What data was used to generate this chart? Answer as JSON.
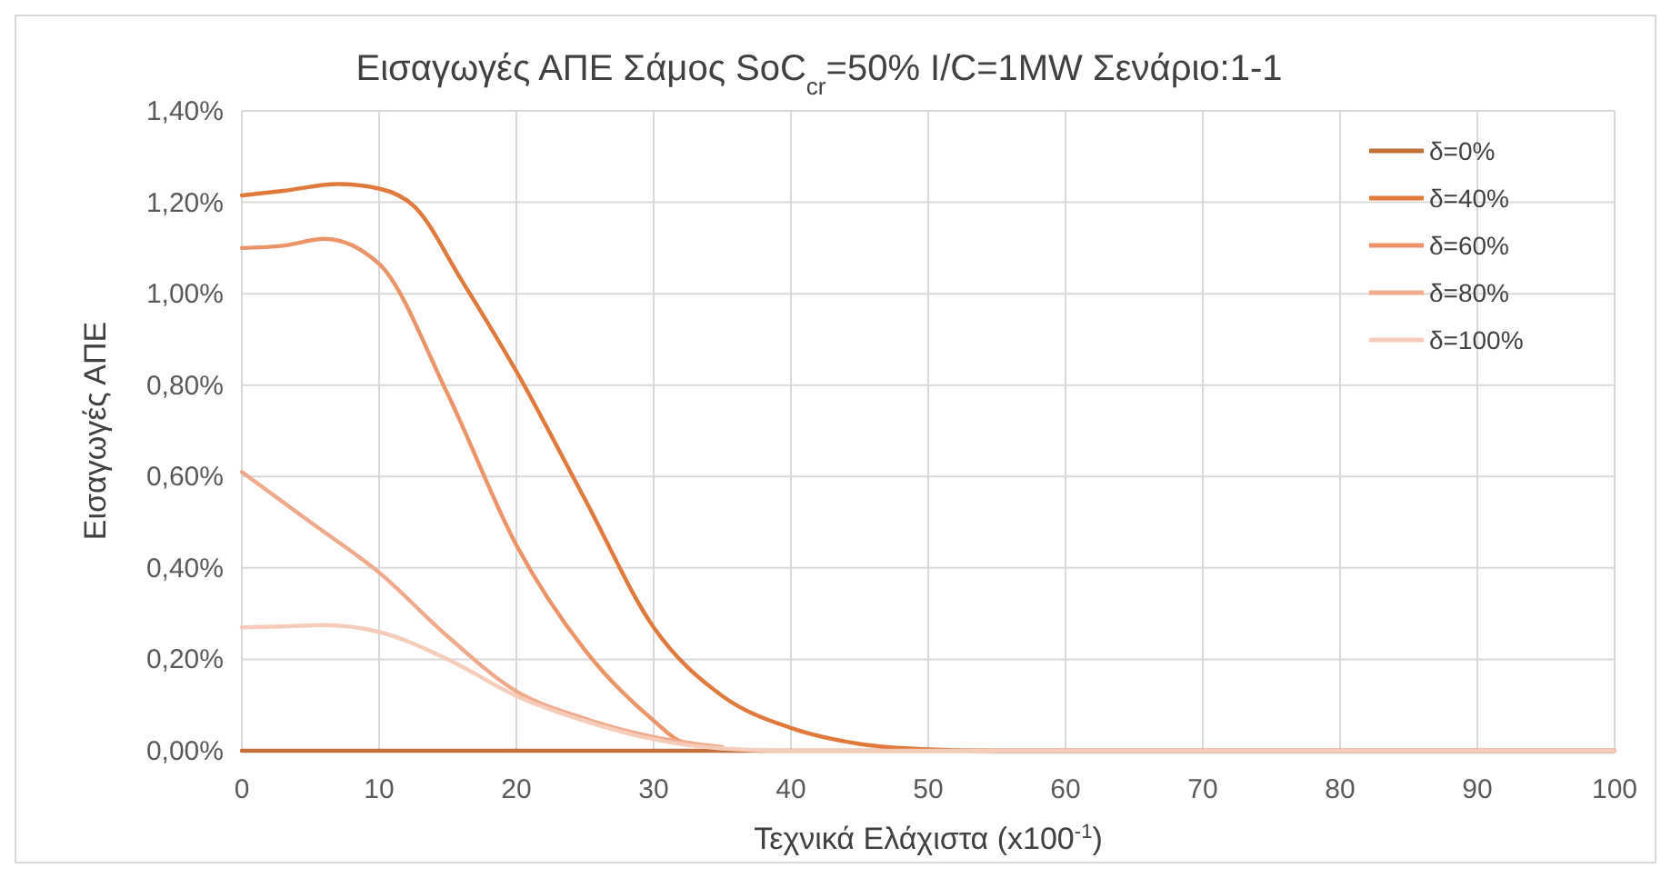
{
  "chart_data": {
    "type": "line",
    "title": "Εισαγωγές ΑΠΕ Σάμος SoC$_{cr}$=50% I/C=1MW Σενάριο:1-1",
    "xlabel": "Τεχνικά Ελάχιστα (x100$^{-1}$)",
    "ylabel": "Εισαγωγές ΑΠΕ",
    "xlim": [
      0,
      100
    ],
    "xticks": [
      0,
      10,
      20,
      30,
      40,
      50,
      60,
      70,
      80,
      90,
      100
    ],
    "ylim": [
      0,
      1.4
    ],
    "yticks": [
      {
        "value": 0,
        "label": "0,00%"
      },
      {
        "value": 0.2,
        "label": "0,20%"
      },
      {
        "value": 0.4,
        "label": "0,40%"
      },
      {
        "value": 0.6,
        "label": "0,60%"
      },
      {
        "value": 0.8,
        "label": "0,80%"
      },
      {
        "value": 1.0,
        "label": "1,00%"
      },
      {
        "value": 1.2,
        "label": "1,20%"
      },
      {
        "value": 1.4,
        "label": "1,40%"
      }
    ],
    "grid": true,
    "legend": "top right",
    "line_style": "solid",
    "marker": "none",
    "series": [
      {
        "name": "δ=0%",
        "color": "#c0703a",
        "x": [
          0,
          50,
          100
        ],
        "values": [
          0,
          0,
          0
        ]
      },
      {
        "name": "δ=40%",
        "color": "#e07a3c",
        "x": [
          0,
          3,
          7,
          10,
          12.6,
          16,
          20,
          25,
          30,
          35,
          40,
          45,
          50,
          55,
          60,
          100
        ],
        "values": [
          1.215,
          1.225,
          1.24,
          1.23,
          1.19,
          1.03,
          0.83,
          0.55,
          0.27,
          0.12,
          0.05,
          0.015,
          0.003,
          0,
          0,
          0
        ]
      },
      {
        "name": "δ=60%",
        "color": "#ec9468",
        "x": [
          0,
          3,
          6,
          10,
          15,
          20,
          25,
          30,
          32,
          35
        ],
        "values": [
          1.1,
          1.105,
          1.12,
          1.065,
          0.78,
          0.45,
          0.22,
          0.066,
          0.02,
          0.005
        ]
      },
      {
        "name": "δ=80%",
        "color": "#f0a98a",
        "x": [
          0,
          5,
          10,
          15,
          20,
          25,
          30,
          35
        ],
        "values": [
          0.61,
          0.5,
          0.39,
          0.25,
          0.13,
          0.07,
          0.03,
          0.008
        ]
      },
      {
        "name": "δ=100%",
        "color": "#f6cbb8",
        "x": [
          0,
          3,
          6,
          10,
          15,
          20,
          25,
          30,
          35,
          40,
          100
        ],
        "values": [
          0.27,
          0.272,
          0.275,
          0.26,
          0.2,
          0.12,
          0.065,
          0.025,
          0.005,
          0,
          0
        ]
      }
    ]
  }
}
